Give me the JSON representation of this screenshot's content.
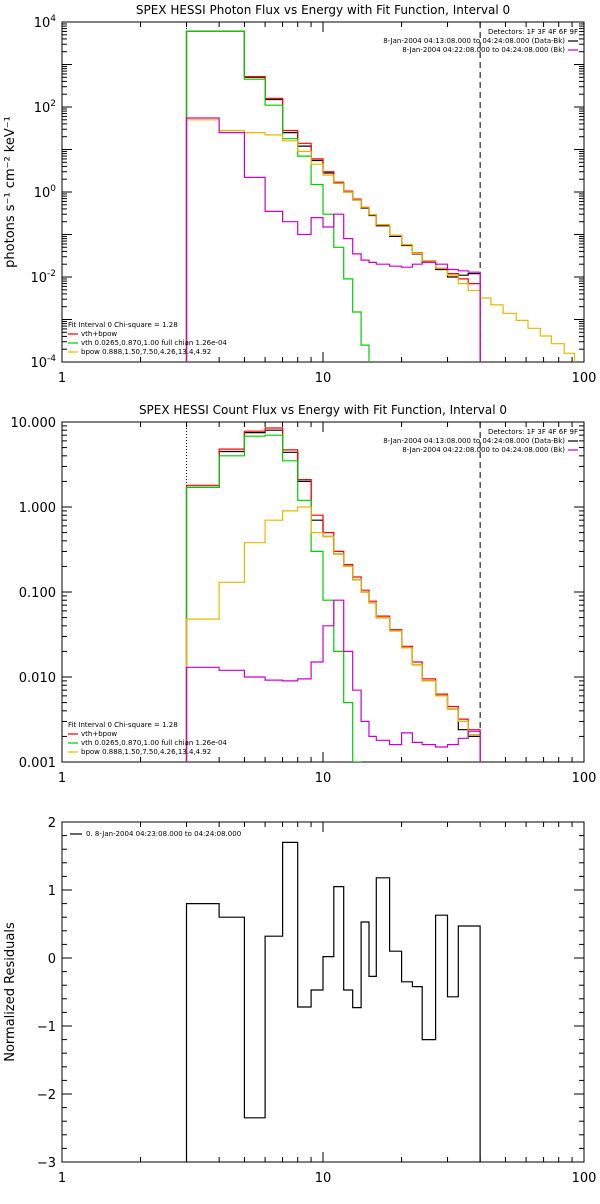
{
  "chart_data": [
    {
      "type": "line",
      "step": true,
      "title": "SPEX HESSI Photon Flux vs Energy with Fit Function, Interval 0",
      "ylabel": "photons s⁻¹ cm⁻² keV⁻¹",
      "xlabel": "",
      "xscale": "log",
      "yscale": "log",
      "xlim": [
        1,
        100
      ],
      "ylim": [
        0.0001,
        10000
      ],
      "xticks": [
        {
          "v": 1,
          "label": "1"
        },
        {
          "v": 10,
          "label": "10"
        },
        {
          "v": 100,
          "label": "100"
        }
      ],
      "yticks": [
        {
          "v": 0.0001,
          "base": "10",
          "exp": "-4"
        },
        {
          "v": 0.01,
          "base": "10",
          "exp": "-2"
        },
        {
          "v": 1,
          "base": "10",
          "exp": "0"
        },
        {
          "v": 100,
          "base": "10",
          "exp": "2"
        },
        {
          "v": 10000,
          "base": "10",
          "exp": "4"
        }
      ],
      "vlines": [
        {
          "x": 3,
          "style": "dotted"
        },
        {
          "x": 40,
          "style": "dashed"
        }
      ],
      "legend_top": {
        "position": "top-right",
        "header": "Detectors: 1F 3F 4F 6F 9F",
        "items": [
          {
            "label": "8-Jan-2004 04:13:08.000 to 04:24:08.000 (Data-Bk)",
            "color": "#000000"
          },
          {
            "label": "8-Jan-2004 04:22:08.000 to 04:24:08.000 (Bk)",
            "color": "#cc00cc"
          }
        ]
      },
      "legend_bottom": {
        "position": "bottom-left",
        "header": "Fit Interval  0    Chi-square = 1.28",
        "items": [
          {
            "label": "vth+bpow",
            "color": "#ff0000"
          },
          {
            "label": "vth 0.0265,0.870,1.00  full chian 1.26e-04",
            "color": "#00cc00"
          },
          {
            "label": "bpow 0.888,1.50,7.50,4.26,13.4,4.92",
            "color": "#e6b800"
          }
        ]
      },
      "series": [
        {
          "name": "Data-Bk",
          "color": "#000000",
          "edges": [
            3,
            4,
            5,
            6,
            7,
            8,
            9,
            10,
            11,
            12,
            13,
            14,
            15,
            16,
            18,
            20,
            22,
            24,
            27,
            30,
            33,
            36,
            40
          ],
          "values": [
            6000,
            6000,
            500,
            150,
            25,
            12,
            5.5,
            2.8,
            1.6,
            1.0,
            0.65,
            0.42,
            0.28,
            0.16,
            0.09,
            0.055,
            0.035,
            0.022,
            0.015,
            0.01,
            0.011,
            0.012
          ]
        },
        {
          "name": "vth+bpow",
          "color": "#ff0000",
          "edges": [
            3,
            4,
            5,
            6,
            7,
            8,
            9,
            10,
            11,
            12,
            13,
            14,
            15,
            16,
            18,
            20,
            22,
            24,
            27,
            30,
            33,
            36,
            40
          ],
          "values": [
            6000,
            6000,
            520,
            160,
            28,
            14,
            6,
            3,
            1.7,
            1.05,
            0.68,
            0.44,
            0.29,
            0.17,
            0.095,
            0.058,
            0.037,
            0.024,
            0.016,
            0.012,
            0.009,
            0.007
          ]
        },
        {
          "name": "vth",
          "color": "#00cc00",
          "edges": [
            3,
            4,
            5,
            6,
            7,
            8,
            9,
            10,
            11,
            12,
            13,
            14,
            15,
            16
          ],
          "values": [
            6000,
            6000,
            450,
            110,
            18,
            7,
            1.5,
            0.3,
            0.05,
            0.009,
            0.0015,
            0.00025,
            1e-05
          ]
        },
        {
          "name": "bpow",
          "color": "#e6b800",
          "edges": [
            3,
            4,
            5,
            6,
            7,
            8,
            9,
            10,
            11,
            12,
            13,
            14,
            15,
            16,
            18,
            20,
            22,
            24,
            27,
            30,
            33,
            36,
            40,
            44,
            49,
            55,
            61,
            68,
            75,
            84,
            92
          ],
          "values": [
            50,
            28,
            25,
            22,
            16,
            9,
            4.5,
            2.5,
            1.6,
            1.0,
            0.65,
            0.44,
            0.29,
            0.17,
            0.095,
            0.058,
            0.036,
            0.024,
            0.016,
            0.011,
            0.007,
            0.0048,
            0.0032,
            0.0022,
            0.0014,
            0.00095,
            0.00062,
            0.00041,
            0.00027,
            0.00016
          ]
        },
        {
          "name": "Bk",
          "color": "#cc00cc",
          "edges": [
            3,
            4,
            5,
            6,
            7,
            8,
            9,
            10,
            11,
            12,
            13,
            14,
            15,
            16,
            18,
            20,
            22,
            24,
            27,
            30,
            33,
            36,
            40
          ],
          "values": [
            55,
            25,
            2.2,
            0.35,
            0.2,
            0.1,
            0.25,
            0.15,
            0.3,
            0.08,
            0.035,
            0.025,
            0.022,
            0.02,
            0.018,
            0.017,
            0.02,
            0.022,
            0.02,
            0.015,
            0.014,
            0.013
          ]
        }
      ]
    },
    {
      "type": "line",
      "step": true,
      "title": "SPEX HESSI Count Flux vs Energy with Fit Function, Interval 0",
      "ylabel": "",
      "xlabel": "",
      "xscale": "log",
      "yscale": "log",
      "xlim": [
        1,
        100
      ],
      "ylim": [
        0.001,
        10
      ],
      "xticks": [
        {
          "v": 1,
          "label": "1"
        },
        {
          "v": 10,
          "label": "10"
        },
        {
          "v": 100,
          "label": "100"
        }
      ],
      "yticks": [
        {
          "v": 0.001,
          "label": "0.001"
        },
        {
          "v": 0.01,
          "label": "0.010"
        },
        {
          "v": 0.1,
          "label": "0.100"
        },
        {
          "v": 1,
          "label": "1.000"
        },
        {
          "v": 10,
          "label": "10.000"
        }
      ],
      "vlines": [
        {
          "x": 3,
          "style": "dotted"
        },
        {
          "x": 40,
          "style": "dashed"
        }
      ],
      "legend_top": {
        "position": "top-right",
        "header": "Detectors: 1F 3F 4F 6F 9F",
        "items": [
          {
            "label": "8-Jan-2004 04:13:08.000 to 04:24:08.000 (Data-Bk)",
            "color": "#000000"
          },
          {
            "label": "8-Jan-2004 04:22:08.000 to 04:24:08.000 (Bk)",
            "color": "#cc00cc"
          }
        ]
      },
      "legend_bottom": {
        "position": "bottom-left",
        "header": "Fit Interval  0    Chi-square = 1.28",
        "items": [
          {
            "label": "vth+bpow",
            "color": "#ff0000"
          },
          {
            "label": "vth 0.0265,0.870,1.00  full chian 1.26e-04",
            "color": "#00cc00"
          },
          {
            "label": "bpow 0.888,1.50,7.50,4.26,13.4,4.92",
            "color": "#e6b800"
          }
        ]
      },
      "series": [
        {
          "name": "Data-Bk",
          "color": "#000000",
          "edges": [
            3,
            4,
            5,
            6,
            7,
            8,
            9,
            10,
            11,
            12,
            13,
            14,
            15,
            16,
            18,
            20,
            22,
            24,
            27,
            30,
            33,
            36,
            40
          ],
          "values": [
            1.7,
            4.5,
            7.5,
            8.0,
            4.4,
            2.0,
            0.7,
            0.45,
            0.28,
            0.2,
            0.14,
            0.1,
            0.075,
            0.05,
            0.035,
            0.022,
            0.014,
            0.009,
            0.006,
            0.0042,
            0.0024,
            0.002
          ]
        },
        {
          "name": "vth+bpow",
          "color": "#ff0000",
          "edges": [
            3,
            4,
            5,
            6,
            7,
            8,
            9,
            10,
            11,
            12,
            13,
            14,
            15,
            16,
            18,
            20,
            22,
            24,
            27,
            30,
            33,
            36,
            40
          ],
          "values": [
            1.8,
            4.8,
            7.8,
            8.5,
            4.7,
            2.1,
            0.8,
            0.5,
            0.3,
            0.21,
            0.15,
            0.105,
            0.078,
            0.052,
            0.036,
            0.023,
            0.015,
            0.0095,
            0.0063,
            0.0045,
            0.0032,
            0.0024
          ]
        },
        {
          "name": "vth",
          "color": "#00cc00",
          "edges": [
            3,
            4,
            5,
            6,
            7,
            8,
            9,
            10,
            11,
            12,
            13,
            14
          ],
          "values": [
            1.7,
            4.0,
            6.8,
            7.0,
            3.5,
            1.2,
            0.3,
            0.08,
            0.02,
            0.005,
            0.001
          ]
        },
        {
          "name": "bpow",
          "color": "#e6b800",
          "edges": [
            3,
            4,
            5,
            6,
            7,
            8,
            9,
            10,
            11,
            12,
            13,
            14,
            15,
            16,
            18,
            20,
            22,
            24,
            27,
            30,
            33,
            36,
            40
          ],
          "values": [
            0.048,
            0.13,
            0.38,
            0.7,
            0.9,
            1.0,
            0.5,
            0.45,
            0.28,
            0.2,
            0.14,
            0.1,
            0.075,
            0.05,
            0.035,
            0.022,
            0.014,
            0.009,
            0.006,
            0.0042,
            0.003,
            0.0021
          ]
        },
        {
          "name": "Bk",
          "color": "#cc00cc",
          "edges": [
            3,
            4,
            5,
            6,
            7,
            8,
            9,
            10,
            11,
            12,
            13,
            14,
            15,
            16,
            18,
            20,
            22,
            24,
            27,
            30,
            33,
            36,
            40
          ],
          "values": [
            0.013,
            0.012,
            0.01,
            0.0092,
            0.009,
            0.0095,
            0.015,
            0.04,
            0.08,
            0.02,
            0.007,
            0.003,
            0.002,
            0.0018,
            0.0016,
            0.0022,
            0.0017,
            0.0016,
            0.0015,
            0.0016,
            0.0019,
            0.0023
          ]
        }
      ]
    },
    {
      "type": "line",
      "step": true,
      "title": "",
      "ylabel": "Normalized Residuals",
      "xlabel": "",
      "xscale": "log",
      "yscale": "linear",
      "xlim": [
        1,
        100
      ],
      "ylim": [
        -3,
        2
      ],
      "xticks": [
        {
          "v": 1,
          "label": "1"
        },
        {
          "v": 10,
          "label": "10"
        },
        {
          "v": 100,
          "label": "100"
        }
      ],
      "yticks": [
        {
          "v": -3,
          "label": "−3"
        },
        {
          "v": -2,
          "label": "−2"
        },
        {
          "v": -1,
          "label": "−1"
        },
        {
          "v": 0,
          "label": "0"
        },
        {
          "v": 1,
          "label": "1"
        },
        {
          "v": 2,
          "label": "2"
        }
      ],
      "legend_top": {
        "position": "top-left",
        "header": "",
        "items": [
          {
            "label": "0.  8-Jan-2004 04:23:08.000 to 04:24:08.000",
            "color": "#000000"
          }
        ]
      },
      "series": [
        {
          "name": "0.",
          "color": "#000000",
          "edges": [
            3,
            4,
            5,
            6,
            7,
            8,
            9,
            10,
            11,
            12,
            13,
            14,
            15,
            16,
            18,
            20,
            22,
            24,
            27,
            30,
            33,
            36,
            40
          ],
          "values": [
            0.8,
            0.6,
            -2.35,
            0.32,
            1.7,
            -0.72,
            -0.47,
            0.02,
            1.05,
            -0.47,
            -0.73,
            0.53,
            -0.27,
            1.18,
            0.1,
            -0.35,
            -0.42,
            -1.2,
            0.63,
            -0.57,
            0.47,
            0.47
          ]
        }
      ]
    }
  ]
}
